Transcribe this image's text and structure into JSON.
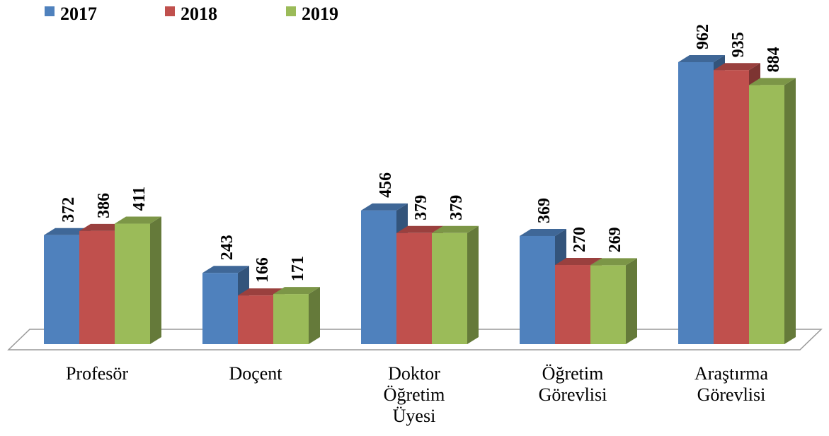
{
  "chart_data": {
    "type": "bar3d",
    "categories": [
      "Profesör",
      "Doçent",
      "Doktor Öğretim Üyesi",
      "Öğretim Görevlisi",
      "Araştırma Görevlisi"
    ],
    "series": [
      {
        "name": "2017",
        "color": "#4f81bd",
        "values": [
          372,
          243,
          456,
          369,
          962
        ]
      },
      {
        "name": "2018",
        "color": "#c0504d",
        "values": [
          386,
          166,
          379,
          270,
          935
        ]
      },
      {
        "name": "2019",
        "color": "#9bbb59",
        "values": [
          411,
          171,
          379,
          269,
          884
        ]
      }
    ],
    "legend": "top-left"
  }
}
